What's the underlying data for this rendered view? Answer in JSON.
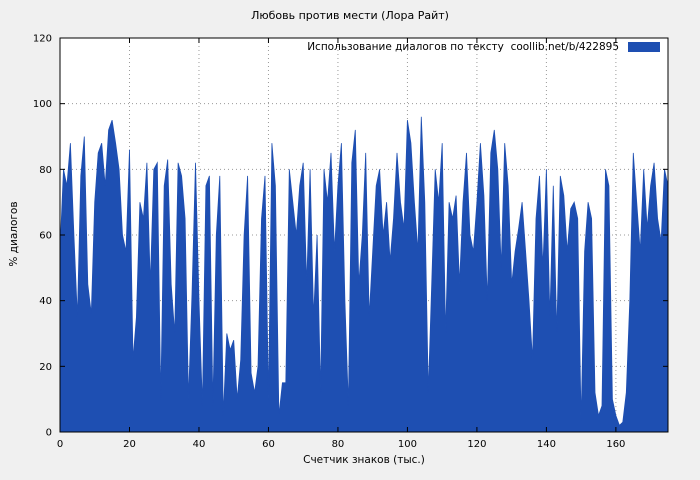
{
  "chart_data": {
    "type": "area",
    "title": "Любовь против мести (Лора Райт)",
    "legend": "Использование диалогов по тексту  coollib.net/b/422895",
    "xlabel": "Счетчик знаков (тыс.)",
    "ylabel": "% диалогов",
    "xlim": [
      0,
      175
    ],
    "ylim": [
      0,
      120
    ],
    "x_ticks": [
      0,
      20,
      40,
      60,
      80,
      100,
      120,
      140,
      160
    ],
    "y_ticks": [
      0,
      20,
      40,
      60,
      80,
      100,
      120
    ],
    "grid": "dotted",
    "fill_color": "#1e4fb2",
    "plot_bg": "#ffffff",
    "page_bg": "#f0f0f0",
    "x_start": 0,
    "x_step": 1,
    "values": [
      55,
      80,
      75,
      88,
      60,
      35,
      78,
      90,
      45,
      36,
      70,
      85,
      88,
      75,
      92,
      95,
      88,
      80,
      60,
      55,
      86,
      22,
      35,
      70,
      65,
      82,
      45,
      80,
      82,
      10,
      75,
      83,
      45,
      30,
      82,
      78,
      65,
      10,
      42,
      82,
      40,
      8,
      75,
      78,
      8,
      60,
      78,
      5,
      30,
      25,
      28,
      10,
      22,
      60,
      78,
      18,
      12,
      20,
      65,
      78,
      10,
      88,
      75,
      5,
      15,
      15,
      80,
      70,
      60,
      75,
      82,
      45,
      80,
      35,
      60,
      12,
      80,
      70,
      85,
      55,
      75,
      88,
      40,
      8,
      82,
      92,
      45,
      60,
      85,
      35,
      55,
      75,
      80,
      60,
      70,
      52,
      65,
      85,
      70,
      62,
      95,
      88,
      70,
      55,
      96,
      70,
      12,
      45,
      80,
      70,
      88,
      30,
      70,
      65,
      72,
      45,
      70,
      85,
      60,
      55,
      70,
      88,
      72,
      40,
      85,
      92,
      80,
      50,
      88,
      75,
      45,
      55,
      62,
      70,
      55,
      40,
      22,
      65,
      78,
      50,
      80,
      35,
      75,
      30,
      78,
      72,
      55,
      68,
      70,
      65,
      3,
      55,
      70,
      65,
      12,
      5,
      8,
      80,
      75,
      10,
      5,
      2,
      3,
      12,
      40,
      85,
      70,
      55,
      80,
      62,
      75,
      82,
      65,
      58,
      80,
      75
    ]
  }
}
